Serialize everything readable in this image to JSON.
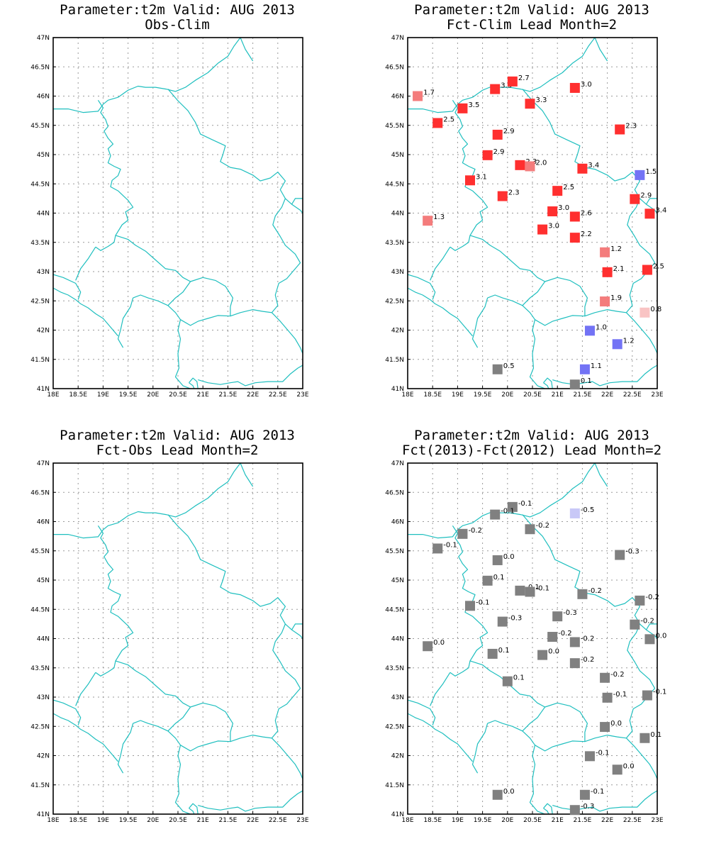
{
  "panels": [
    {
      "id": "obs-clim",
      "title_line1": "Parameter:t2m Valid: AUG 2013",
      "title_line2": "Obs-Clim",
      "stations": []
    },
    {
      "id": "fct-clim",
      "title_line1": "Parameter:t2m Valid: AUG 2013",
      "title_line2": "Fct-Clim Lead Month=2",
      "stations": [
        {
          "lon": 18.2,
          "lat": 46.0,
          "label": "1.7",
          "color": "#f47c7c"
        },
        {
          "lon": 19.1,
          "lat": 45.79,
          "label": "3.5",
          "color": "#ff2f2f"
        },
        {
          "lon": 19.75,
          "lat": 46.12,
          "label": "3.3",
          "color": "#ff2f2f"
        },
        {
          "lon": 20.1,
          "lat": 46.25,
          "label": "2.7",
          "color": "#ff2f2f"
        },
        {
          "lon": 20.45,
          "lat": 45.87,
          "label": "3.3",
          "color": "#ff2f2f"
        },
        {
          "lon": 21.35,
          "lat": 46.14,
          "label": "3.0",
          "color": "#ff2f2f"
        },
        {
          "lon": 18.6,
          "lat": 45.54,
          "label": "2.5",
          "color": "#ff2f2f"
        },
        {
          "lon": 19.8,
          "lat": 45.34,
          "label": "2.9",
          "color": "#ff2f2f"
        },
        {
          "lon": 22.25,
          "lat": 45.43,
          "label": "2.3",
          "color": "#ff2f2f"
        },
        {
          "lon": 19.6,
          "lat": 44.99,
          "label": "2.9",
          "color": "#ff2f2f"
        },
        {
          "lon": 20.25,
          "lat": 44.82,
          "label": "2.3",
          "color": "#ff2f2f"
        },
        {
          "lon": 20.45,
          "lat": 44.8,
          "label": "2.0",
          "color": "#f47c7c"
        },
        {
          "lon": 21.5,
          "lat": 44.76,
          "label": "3.4",
          "color": "#ff2f2f"
        },
        {
          "lon": 22.65,
          "lat": 44.65,
          "label": "1.5",
          "color": "#7373f5"
        },
        {
          "lon": 19.25,
          "lat": 44.56,
          "label": "3.1",
          "color": "#ff2f2f"
        },
        {
          "lon": 19.9,
          "lat": 44.29,
          "label": "2.3",
          "color": "#ff2f2f"
        },
        {
          "lon": 21.0,
          "lat": 44.38,
          "label": "2.5",
          "color": "#ff2f2f"
        },
        {
          "lon": 22.55,
          "lat": 44.24,
          "label": "2.9",
          "color": "#ff2f2f"
        },
        {
          "lon": 22.85,
          "lat": 43.99,
          "label": "3.4",
          "color": "#ff2f2f"
        },
        {
          "lon": 18.4,
          "lat": 43.87,
          "label": "1.3",
          "color": "#f47c7c"
        },
        {
          "lon": 20.9,
          "lat": 44.03,
          "label": "3.0",
          "color": "#ff2f2f"
        },
        {
          "lon": 21.35,
          "lat": 43.94,
          "label": "2.6",
          "color": "#ff2f2f"
        },
        {
          "lon": 20.7,
          "lat": 43.72,
          "label": "3.0",
          "color": "#ff2f2f"
        },
        {
          "lon": 21.35,
          "lat": 43.58,
          "label": "2.2",
          "color": "#ff2f2f"
        },
        {
          "lon": 21.95,
          "lat": 43.33,
          "label": "1.2",
          "color": "#f47c7c"
        },
        {
          "lon": 22.0,
          "lat": 42.99,
          "label": "2.1",
          "color": "#ff2f2f"
        },
        {
          "lon": 22.8,
          "lat": 43.03,
          "label": "2.5",
          "color": "#ff2f2f"
        },
        {
          "lon": 21.95,
          "lat": 42.49,
          "label": "1.9",
          "color": "#f47c7c"
        },
        {
          "lon": 22.75,
          "lat": 42.3,
          "label": "0.8",
          "color": "#f9c4c4"
        },
        {
          "lon": 21.65,
          "lat": 41.99,
          "label": "1.0",
          "color": "#7373f5"
        },
        {
          "lon": 22.2,
          "lat": 41.76,
          "label": "1.2",
          "color": "#7373f5"
        },
        {
          "lon": 19.8,
          "lat": 41.33,
          "label": "0.5",
          "color": "#808080"
        },
        {
          "lon": 21.55,
          "lat": 41.33,
          "label": "1.1",
          "color": "#7373f5"
        },
        {
          "lon": 21.35,
          "lat": 41.07,
          "label": "0.1",
          "color": "#808080"
        }
      ]
    },
    {
      "id": "fct-obs",
      "title_line1": "Parameter:t2m Valid: AUG 2013",
      "title_line2": "Fct-Obs Lead Month=2",
      "stations": []
    },
    {
      "id": "fct2013-fct2012",
      "title_line1": "Parameter:t2m Valid: AUG 2013",
      "title_line2": "Fct(2013)-Fct(2012) Lead Month=2",
      "stations": [
        {
          "lon": 20.1,
          "lat": 46.25,
          "label": "-0.1",
          "color": "#808080"
        },
        {
          "lon": 19.75,
          "lat": 46.12,
          "label": "-0.1",
          "color": "#808080"
        },
        {
          "lon": 21.35,
          "lat": 46.14,
          "label": "-0.5",
          "color": "#c8c8f7"
        },
        {
          "lon": 19.1,
          "lat": 45.79,
          "label": "-0.2",
          "color": "#808080"
        },
        {
          "lon": 20.45,
          "lat": 45.87,
          "label": "-0.2",
          "color": "#808080"
        },
        {
          "lon": 18.6,
          "lat": 45.54,
          "label": "-0.1",
          "color": "#808080"
        },
        {
          "lon": 22.25,
          "lat": 45.43,
          "label": "-0.3",
          "color": "#808080"
        },
        {
          "lon": 19.8,
          "lat": 45.34,
          "label": "0.0",
          "color": "#808080"
        },
        {
          "lon": 19.6,
          "lat": 44.99,
          "label": "0.1",
          "color": "#808080"
        },
        {
          "lon": 20.25,
          "lat": 44.82,
          "label": "-0.1",
          "color": "#808080"
        },
        {
          "lon": 20.45,
          "lat": 44.8,
          "label": "-0.1",
          "color": "#808080"
        },
        {
          "lon": 21.5,
          "lat": 44.76,
          "label": "-0.2",
          "color": "#808080"
        },
        {
          "lon": 22.65,
          "lat": 44.65,
          "label": "-0.2",
          "color": "#808080"
        },
        {
          "lon": 19.25,
          "lat": 44.56,
          "label": "-0.1",
          "color": "#808080"
        },
        {
          "lon": 21.0,
          "lat": 44.38,
          "label": "-0.3",
          "color": "#808080"
        },
        {
          "lon": 19.9,
          "lat": 44.29,
          "label": "-0.3",
          "color": "#808080"
        },
        {
          "lon": 22.55,
          "lat": 44.24,
          "label": "-0.2",
          "color": "#808080"
        },
        {
          "lon": 20.9,
          "lat": 44.03,
          "label": "-0.2",
          "color": "#808080"
        },
        {
          "lon": 21.35,
          "lat": 43.94,
          "label": "-0.2",
          "color": "#808080"
        },
        {
          "lon": 22.85,
          "lat": 43.99,
          "label": "0.0",
          "color": "#808080"
        },
        {
          "lon": 18.4,
          "lat": 43.87,
          "label": "0.0",
          "color": "#808080"
        },
        {
          "lon": 19.7,
          "lat": 43.74,
          "label": "0.1",
          "color": "#808080"
        },
        {
          "lon": 20.7,
          "lat": 43.72,
          "label": "0.0",
          "color": "#808080"
        },
        {
          "lon": 21.35,
          "lat": 43.58,
          "label": "-0.2",
          "color": "#808080"
        },
        {
          "lon": 21.95,
          "lat": 43.33,
          "label": "-0.2",
          "color": "#808080"
        },
        {
          "lon": 20.0,
          "lat": 43.27,
          "label": "0.1",
          "color": "#808080"
        },
        {
          "lon": 22.0,
          "lat": 42.99,
          "label": "-0.1",
          "color": "#808080"
        },
        {
          "lon": 22.8,
          "lat": 43.03,
          "label": "-0.1",
          "color": "#808080"
        },
        {
          "lon": 21.95,
          "lat": 42.49,
          "label": "0.0",
          "color": "#808080"
        },
        {
          "lon": 22.75,
          "lat": 42.3,
          "label": "0.1",
          "color": "#808080"
        },
        {
          "lon": 21.65,
          "lat": 41.99,
          "label": "-0.1",
          "color": "#808080"
        },
        {
          "lon": 22.2,
          "lat": 41.76,
          "label": "0.0",
          "color": "#808080"
        },
        {
          "lon": 19.8,
          "lat": 41.33,
          "label": "0.0",
          "color": "#808080"
        },
        {
          "lon": 21.55,
          "lat": 41.33,
          "label": "-0.1",
          "color": "#808080"
        },
        {
          "lon": 21.35,
          "lat": 41.07,
          "label": "-0.3",
          "color": "#808080"
        }
      ]
    }
  ],
  "axes": {
    "lon_ticks": [
      "18E",
      "18.5E",
      "19E",
      "19.5E",
      "20E",
      "20.5E",
      "21E",
      "21.5E",
      "22E",
      "22.5E",
      "23E"
    ],
    "lat_ticks": [
      "41N",
      "41.5N",
      "42N",
      "42.5N",
      "43N",
      "43.5N",
      "44N",
      "44.5N",
      "45N",
      "45.5N",
      "46N",
      "46.5N",
      "47N"
    ],
    "lon_range": [
      18,
      23
    ],
    "lat_range": [
      41,
      47
    ]
  },
  "colors": {
    "border": "#1fbfbf",
    "grid": "#9a9a9a",
    "frame": "#000000"
  }
}
